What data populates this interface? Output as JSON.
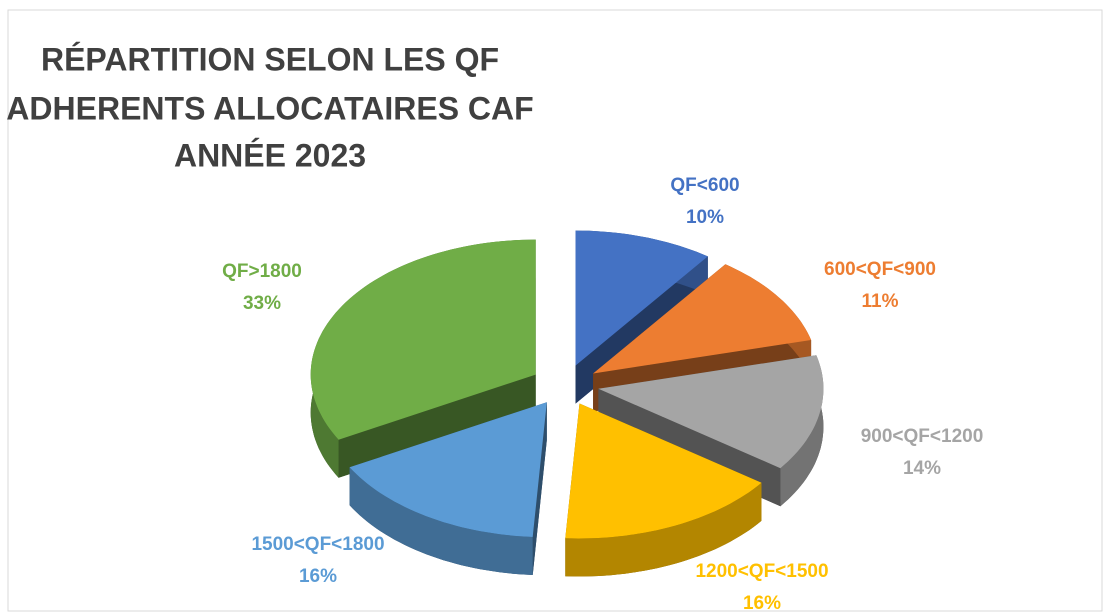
{
  "chart_data": {
    "type": "pie",
    "title_lines": [
      "RÉPARTITION SELON LES QF",
      "ADHERENTS ALLOCATAIRES CAF",
      "ANNÉE 2023"
    ],
    "categories": [
      "QF<600",
      "600<QF<900",
      "900<QF<1200",
      "1200<QF<1500",
      "1500<QF<1800",
      "QF>1800"
    ],
    "values": [
      10,
      11,
      14,
      16,
      16,
      33
    ],
    "value_labels": [
      "10%",
      "11%",
      "14%",
      "16%",
      "16%",
      "33%"
    ],
    "colors": [
      "#4472c4",
      "#ed7d31",
      "#a5a5a5",
      "#ffc000",
      "#5b9bd5",
      "#70ad47"
    ]
  }
}
